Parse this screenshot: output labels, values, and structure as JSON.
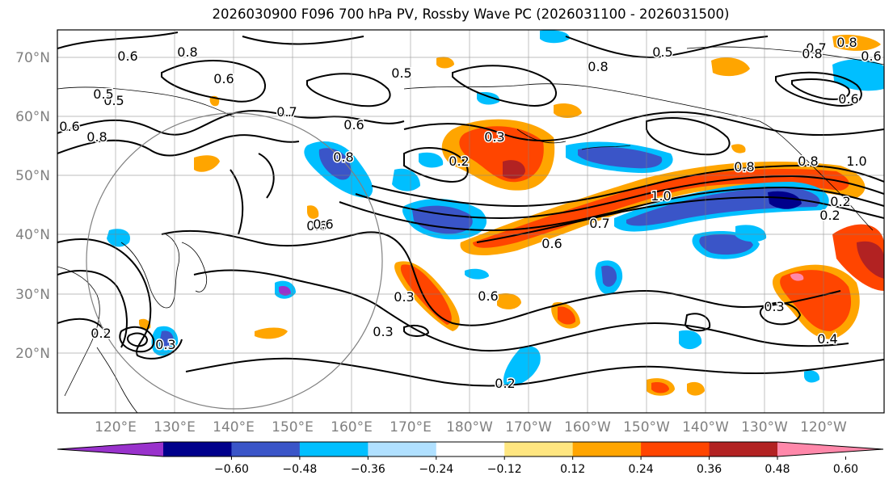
{
  "title": "2026030900 F096 700 hPa PV, Rossby Wave PC (2026031100 - 2026031500)",
  "lat_labels": [
    "70°N",
    "60°N",
    "50°N",
    "40°N",
    "30°N",
    "20°N"
  ],
  "lon_labels": [
    "120°E",
    "130°E",
    "140°E",
    "150°E",
    "160°E",
    "170°E",
    "180°W",
    "170°W",
    "160°W",
    "150°W",
    "140°W",
    "130°W",
    "120°W"
  ],
  "colorbar": {
    "ticks": [
      "−0.60",
      "−0.48",
      "−0.36",
      "−0.24",
      "−0.12",
      "0.12",
      "0.24",
      "0.36",
      "0.48",
      "0.60"
    ],
    "colors": [
      "#9932cc",
      "#00008b",
      "#3a55c8",
      "#00bfff",
      "#b0e0ff",
      "#ffffff",
      "#ffe680",
      "#ffa500",
      "#ff4500",
      "#b22222",
      "#ff88aa"
    ]
  },
  "contour_labels": [
    "0.6",
    "0.8",
    "0.5",
    "0.6",
    "0.8",
    "0.7",
    "0.6",
    "0.6",
    "0.5",
    "0.5",
    "0.8",
    "0.8",
    "0.6",
    "0.3",
    "0.2",
    "0.8",
    "1.0",
    "0.7",
    "0.6",
    "0.6",
    "0.8",
    "0.8",
    "0.2",
    "0.6",
    "0.3",
    "0.3",
    "0.6",
    "0.3",
    "0.2",
    "0.3",
    "0.2",
    "0.4",
    "0.2",
    "1.0",
    "0.5",
    "0.7",
    "0.6",
    "0.8"
  ]
}
